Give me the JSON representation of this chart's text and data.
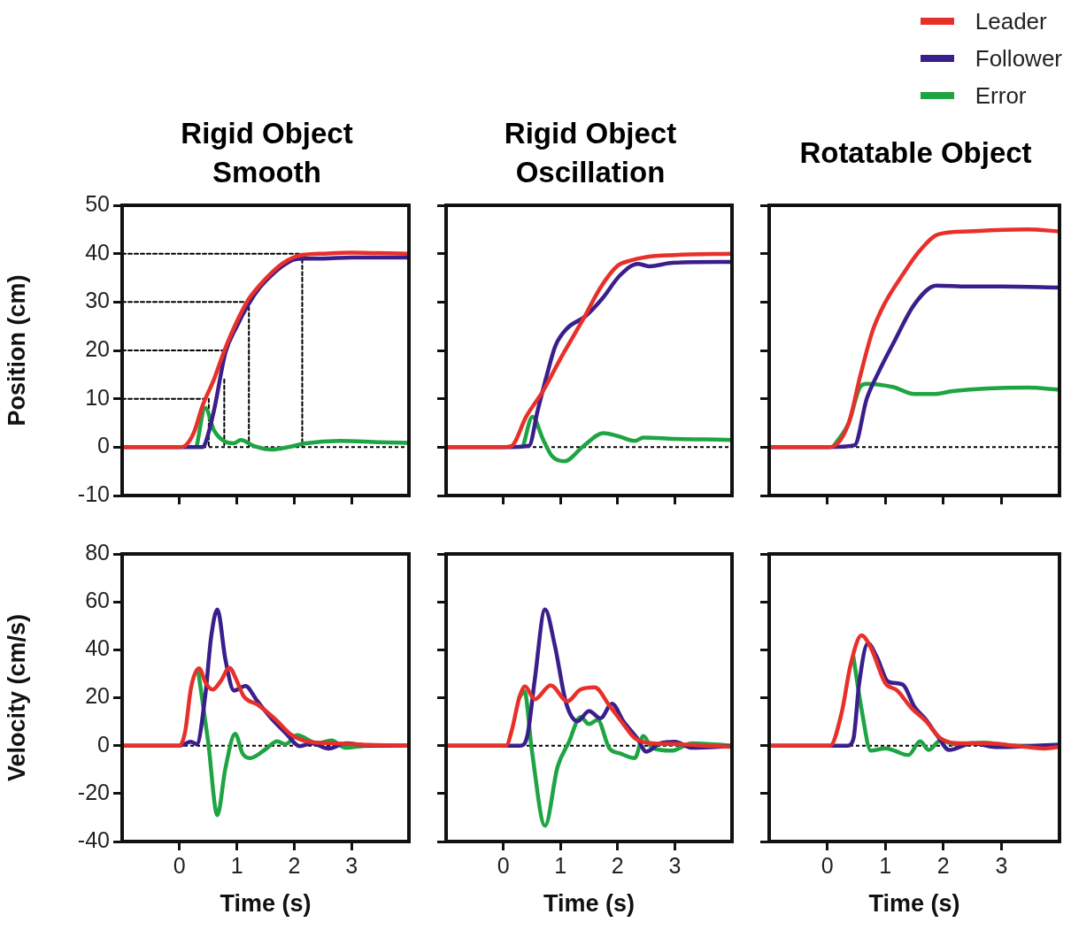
{
  "chart_data": [
    {
      "type": "line",
      "title": "Rigid Object\nSmooth",
      "ylabel": "Position (cm)",
      "xlim": [
        -1,
        4
      ],
      "xticks": [
        0,
        1,
        2,
        3
      ],
      "ylim": [
        -10,
        50
      ],
      "yticks": [
        -10,
        0,
        10,
        20,
        30,
        40,
        50
      ],
      "tick_labels": "y",
      "grid": false,
      "marker": "none",
      "line_style": "solid",
      "ref_lines": [
        {
          "axis": "y",
          "value": 0,
          "color": "#000000",
          "line_style": "dashed"
        }
      ],
      "series": [
        {
          "color": "#e8302a",
          "x": [
            -1,
            0,
            0.1,
            0.25,
            0.4,
            0.6,
            0.8,
            1.0,
            1.2,
            1.4,
            1.6,
            1.8,
            2.0,
            2.2,
            2.5,
            3,
            3.5,
            4
          ],
          "values": [
            0,
            0,
            0.3,
            3,
            8.5,
            14,
            20.5,
            26,
            30.5,
            33.5,
            36,
            38,
            39.3,
            39.8,
            40,
            40.2,
            40.1,
            40
          ]
        },
        {
          "color": "#3a1f8c",
          "x": [
            -1,
            0,
            0.25,
            0.4,
            0.45,
            0.6,
            0.8,
            1.0,
            1.2,
            1.4,
            1.6,
            1.8,
            2.0,
            2.2,
            2.5,
            3,
            3.5,
            4
          ],
          "values": [
            0,
            0,
            0,
            0,
            0.8,
            7.5,
            19.5,
            25,
            29.5,
            33,
            35.5,
            37.5,
            38.8,
            39,
            39,
            39.2,
            39.2,
            39.2
          ]
        },
        {
          "color": "#1fa443",
          "x": [
            0.3,
            0.45,
            0.6,
            0.8,
            0.95,
            1.07,
            1.3,
            1.6,
            1.9,
            2.2,
            2.8,
            3.5,
            4
          ],
          "values": [
            0.2,
            8.1,
            3.5,
            1.1,
            0.8,
            1.5,
            0.2,
            -0.5,
            0,
            0.8,
            1.3,
            1.0,
            0.9
          ]
        },
        {
          "color": "#000000",
          "line_style": "dashed",
          "x": [
            -1,
            0.51
          ],
          "values": [
            10,
            10
          ]
        },
        {
          "color": "#000000",
          "line_style": "dashed",
          "x": [
            -1,
            0.78
          ],
          "values": [
            20,
            20
          ]
        },
        {
          "color": "#000000",
          "line_style": "dashed",
          "x": [
            -1,
            1.17
          ],
          "values": [
            30,
            30
          ]
        },
        {
          "color": "#000000",
          "line_style": "dashed",
          "x": [
            -1,
            2.14,
            2.14
          ],
          "values": [
            40,
            40,
            0
          ]
        },
        {
          "color": "#000000",
          "line_style": "dashed",
          "x": [
            0.51,
            0.51
          ],
          "values": [
            10,
            0
          ]
        },
        {
          "color": "#000000",
          "line_style": "dashed",
          "x": [
            0.78,
            0.78
          ],
          "values": [
            14,
            0
          ]
        },
        {
          "color": "#000000",
          "line_style": "dashed",
          "x": [
            1.21,
            1.21
          ],
          "values": [
            29,
            0
          ]
        }
      ]
    },
    {
      "type": "line",
      "title": "Rigid Object\nOscillation",
      "xlim": [
        -1,
        4
      ],
      "xticks": [
        0,
        1,
        2,
        3
      ],
      "ylim": [
        -10,
        50
      ],
      "yticks": [
        -10,
        0,
        10,
        20,
        30,
        40,
        50
      ],
      "tick_labels": false,
      "grid": false,
      "marker": "none",
      "line_style": "solid",
      "ref_lines": [
        {
          "axis": "y",
          "value": 0,
          "color": "#000000",
          "line_style": "dashed"
        }
      ],
      "series": [
        {
          "color": "#e8302a",
          "x": [
            -1,
            0,
            0.14,
            0.4,
            0.7,
            1.0,
            1.4,
            1.7,
            2.0,
            2.2,
            2.5,
            3,
            4
          ],
          "values": [
            0,
            0,
            0.2,
            6.3,
            11.7,
            18.3,
            26.5,
            33,
            37.5,
            38.5,
            39.3,
            39.7,
            40
          ]
        },
        {
          "color": "#3a1f8c",
          "x": [
            -1,
            0,
            0.45,
            0.6,
            0.76,
            0.91,
            1.12,
            1.43,
            1.73,
            2.04,
            2.35,
            2.55,
            2.96,
            4
          ],
          "values": [
            0,
            0,
            0.3,
            7.5,
            14.8,
            20.9,
            24.6,
            27,
            30.7,
            35.5,
            37.9,
            37.4,
            38.1,
            38.3
          ]
        },
        {
          "color": "#1fa443",
          "x": [
            0.35,
            0.51,
            0.7,
            0.85,
            1.07,
            1.4,
            1.75,
            2.0,
            2.3,
            2.45,
            3,
            3.5,
            4
          ],
          "values": [
            0.3,
            6.3,
            1.5,
            -1.8,
            -2.9,
            0.2,
            2.9,
            2.3,
            1.3,
            2,
            1.7,
            1.6,
            1.5
          ]
        }
      ]
    },
    {
      "type": "line",
      "title": "Rotatable Object",
      "legend": "top right",
      "xlim": [
        -1,
        4
      ],
      "xticks": [
        0,
        1,
        2,
        3
      ],
      "ylim": [
        -10,
        50
      ],
      "yticks": [
        -10,
        0,
        10,
        20,
        30,
        40,
        50
      ],
      "tick_labels": false,
      "grid": false,
      "marker": "none",
      "line_style": "solid",
      "ref_lines": [
        {
          "axis": "y",
          "value": 0,
          "color": "#000000",
          "line_style": "dashed"
        }
      ],
      "series": [
        {
          "name": "Leader",
          "color": "#e8302a",
          "x": [
            -1,
            0,
            0.11,
            0.37,
            0.57,
            0.78,
            0.98,
            1.29,
            1.6,
            1.91,
            2.42,
            3.45,
            4
          ],
          "values": [
            0,
            0,
            0.2,
            5,
            14.8,
            24,
            29.5,
            35.5,
            40.7,
            44,
            44.6,
            45,
            44.6
          ]
        },
        {
          "name": "Follower",
          "color": "#3a1f8c",
          "x": [
            -1,
            0,
            0.47,
            0.68,
            0.88,
            1.14,
            1.5,
            1.88,
            2.42,
            3,
            4
          ],
          "values": [
            0,
            0,
            0.4,
            10,
            15.4,
            21.5,
            29.5,
            33.4,
            33.2,
            33.2,
            33
          ]
        },
        {
          "name": "Error",
          "color": "#1fa443",
          "x": [
            0.11,
            0.37,
            0.57,
            0.68,
            1.14,
            1.5,
            1.86,
            2.16,
            3.45,
            4
          ],
          "values": [
            0.2,
            5,
            12.5,
            13.1,
            12.4,
            11,
            11,
            11.6,
            12.3,
            11.9
          ]
        }
      ]
    },
    {
      "type": "line",
      "xlabel": "Time (s)",
      "ylabel": "Velocity (cm/s)",
      "xlim": [
        -1,
        4
      ],
      "xticks": [
        0,
        1,
        2,
        3
      ],
      "ylim": [
        -40,
        80
      ],
      "yticks": [
        -40,
        -20,
        0,
        20,
        40,
        60,
        80
      ],
      "grid": false,
      "marker": "none",
      "line_style": "solid",
      "ref_lines": [
        {
          "axis": "y",
          "value": 0,
          "color": "#000000",
          "line_style": "dashed"
        }
      ],
      "series": [
        {
          "color": "#e8302a",
          "x": [
            -1,
            0,
            0.1,
            0.2,
            0.34,
            0.46,
            0.58,
            0.72,
            0.87,
            1.0,
            1.12,
            1.37,
            1.68,
            1.94,
            2.25,
            2.7,
            3.3,
            4
          ],
          "values": [
            0,
            0,
            6,
            24,
            32.3,
            26,
            23.4,
            27,
            32.5,
            27,
            20.6,
            17,
            10.8,
            4.7,
            1.6,
            1,
            0.3,
            0
          ]
        },
        {
          "color": "#3a1f8c",
          "x": [
            -1,
            0,
            0.2,
            0.3,
            0.45,
            0.55,
            0.66,
            0.8,
            0.95,
            1.15,
            1.35,
            1.6,
            1.85,
            2.1,
            2.3,
            2.6,
            2.9,
            3.3,
            4
          ],
          "values": [
            0,
            0,
            1.6,
            0.6,
            21,
            45,
            56.8,
            36,
            23,
            24.9,
            18.8,
            11.4,
            5.3,
            -0.2,
            1,
            -1.2,
            1,
            0,
            0
          ]
        },
        {
          "color": "#1fa443",
          "x": [
            0.33,
            0.5,
            0.66,
            0.8,
            0.97,
            1.1,
            1.23,
            1.5,
            1.7,
            1.85,
            2.05,
            2.4,
            2.65,
            2.9,
            3.3,
            4
          ],
          "values": [
            30.4,
            1.6,
            -29,
            -9.5,
            5,
            -3.3,
            -5.2,
            -1.5,
            1.8,
            0.6,
            4.4,
            1,
            2.2,
            -0.9,
            0,
            0
          ]
        }
      ]
    },
    {
      "type": "line",
      "xlabel": "Time (s)",
      "xlim": [
        -1,
        4
      ],
      "xticks": [
        0,
        1,
        2,
        3
      ],
      "ylim": [
        -40,
        80
      ],
      "yticks": [
        -40,
        -20,
        0,
        20,
        40,
        60,
        80
      ],
      "tick_labels": "x",
      "grid": false,
      "marker": "none",
      "line_style": "solid",
      "ref_lines": [
        {
          "axis": "y",
          "value": 0,
          "color": "#000000",
          "line_style": "dashed"
        }
      ],
      "series": [
        {
          "color": "#e8302a",
          "x": [
            -1,
            0,
            0.05,
            0.15,
            0.28,
            0.38,
            0.55,
            0.83,
            1.12,
            1.35,
            1.6,
            1.85,
            2.1,
            2.3,
            2.6,
            3,
            3.5,
            4
          ],
          "values": [
            0,
            0,
            0,
            6.5,
            20,
            24.7,
            19.4,
            25.2,
            18.5,
            23.4,
            24.3,
            16.9,
            9,
            3.1,
            1,
            0.7,
            0,
            -0.5
          ]
        },
        {
          "color": "#3a1f8c",
          "x": [
            -1,
            0,
            0.3,
            0.42,
            0.55,
            0.73,
            0.9,
            1.1,
            1.3,
            1.5,
            1.7,
            1.9,
            2.1,
            2.35,
            2.5,
            2.75,
            3,
            3.3,
            4
          ],
          "values": [
            0,
            0,
            0,
            4,
            27.4,
            56.8,
            42,
            17.7,
            10.2,
            14.5,
            11.4,
            17.5,
            10.2,
            2.8,
            -2.5,
            1,
            1.6,
            -0.9,
            -0.2
          ]
        },
        {
          "color": "#1fa443",
          "x": [
            0.28,
            0.37,
            0.5,
            0.73,
            0.95,
            1.15,
            1.35,
            1.5,
            1.65,
            1.85,
            2.05,
            2.3,
            2.45,
            2.6,
            2.95,
            3.3,
            4
          ],
          "values": [
            20,
            22.7,
            -2,
            -33.4,
            -8.8,
            1.6,
            12,
            9,
            10.8,
            -0.9,
            -3.3,
            -5.2,
            4,
            -0.9,
            -2.1,
            1,
            0
          ]
        }
      ]
    },
    {
      "type": "line",
      "xlabel": "Time (s)",
      "xlim": [
        -1,
        4
      ],
      "xticks": [
        0,
        1,
        2,
        3
      ],
      "ylim": [
        -40,
        80
      ],
      "yticks": [
        -40,
        -20,
        0,
        20,
        40,
        60,
        80
      ],
      "tick_labels": "x",
      "grid": false,
      "marker": "none",
      "line_style": "solid",
      "ref_lines": [
        {
          "axis": "y",
          "value": 0,
          "color": "#000000",
          "line_style": "dashed"
        }
      ],
      "series": [
        {
          "color": "#e8302a",
          "x": [
            -1,
            0,
            0.05,
            0.25,
            0.4,
            0.59,
            0.75,
            1.0,
            1.2,
            1.45,
            1.7,
            1.95,
            2.3,
            2.75,
            3.3,
            3.75,
            4
          ],
          "values": [
            0,
            0,
            0,
            13.9,
            33.5,
            46,
            40.9,
            26.1,
            23.1,
            15.7,
            10.2,
            3.1,
            1,
            1,
            -0.2,
            -1.2,
            -0.5
          ]
        },
        {
          "color": "#3a1f8c",
          "x": [
            -1,
            0,
            0.35,
            0.45,
            0.55,
            0.7,
            0.85,
            1.05,
            1.3,
            1.5,
            1.7,
            1.9,
            2.1,
            2.5,
            2.9,
            4
          ],
          "values": [
            0,
            0,
            0,
            2.8,
            26,
            42.7,
            37.2,
            26.7,
            25.5,
            16.3,
            10.8,
            4,
            -1.8,
            1,
            -0.6,
            0.4
          ]
        },
        {
          "color": "#1fa443",
          "x": [
            0.45,
            0.6,
            0.75,
            1.0,
            1.4,
            1.6,
            1.75,
            1.95,
            2.2,
            2.7,
            3.2,
            4
          ],
          "values": [
            37.2,
            13.9,
            -2.1,
            -1.1,
            -3.9,
            1.8,
            -1.8,
            2.2,
            0.6,
            1.3,
            0,
            0
          ]
        }
      ]
    }
  ]
}
